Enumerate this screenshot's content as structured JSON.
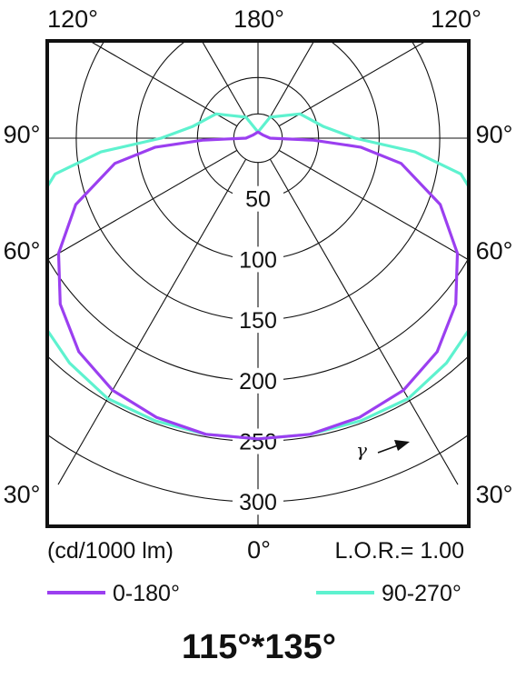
{
  "chart_data": {
    "type": "polar",
    "title": "115°*135°",
    "unit_label": "(cd/1000 lm)",
    "lor_label": "L.O.R.= 1.00",
    "gamma_symbol": "γ",
    "angle_labels": {
      "top_left": "120°",
      "top_center": "180°",
      "top_right": "120°",
      "left_90": "90°",
      "right_90": "90°",
      "left_60": "60°",
      "right_60": "60°",
      "left_30": "30°",
      "right_30": "30°",
      "bottom_center": "0°"
    },
    "radial_ticks": [
      "50",
      "100",
      "150",
      "200",
      "250",
      "300"
    ],
    "rlim": [
      0,
      300
    ],
    "grid": true,
    "legend_position": "bottom",
    "series": [
      {
        "name": "0-180°",
        "color": "#9b3ff0",
        "points": [
          {
            "angle": 0,
            "cd": 248
          },
          {
            "angle": 10,
            "cd": 248
          },
          {
            "angle": 20,
            "cd": 245
          },
          {
            "angle": 30,
            "cd": 240
          },
          {
            "angle": 40,
            "cd": 230
          },
          {
            "angle": 50,
            "cd": 213
          },
          {
            "angle": 60,
            "cd": 190
          },
          {
            "angle": 70,
            "cd": 160
          },
          {
            "angle": 80,
            "cd": 120
          },
          {
            "angle": 85,
            "cd": 85
          },
          {
            "angle": 88,
            "cd": 45
          },
          {
            "angle": 90,
            "cd": 10
          },
          {
            "angle": 120,
            "cd": 5
          },
          {
            "angle": 180,
            "cd": 5
          }
        ]
      },
      {
        "name": "90-270°",
        "color": "#5ef2cf",
        "points": [
          {
            "angle": 0,
            "cd": 248
          },
          {
            "angle": 10,
            "cd": 248
          },
          {
            "angle": 20,
            "cd": 248
          },
          {
            "angle": 30,
            "cd": 248
          },
          {
            "angle": 40,
            "cd": 242
          },
          {
            "angle": 50,
            "cd": 234
          },
          {
            "angle": 60,
            "cd": 220
          },
          {
            "angle": 70,
            "cd": 205
          },
          {
            "angle": 80,
            "cd": 170
          },
          {
            "angle": 85,
            "cd": 130
          },
          {
            "angle": 90,
            "cd": 80
          },
          {
            "angle": 100,
            "cd": 55
          },
          {
            "angle": 120,
            "cd": 40
          },
          {
            "angle": 150,
            "cd": 20
          },
          {
            "angle": 180,
            "cd": 5
          }
        ]
      }
    ]
  }
}
